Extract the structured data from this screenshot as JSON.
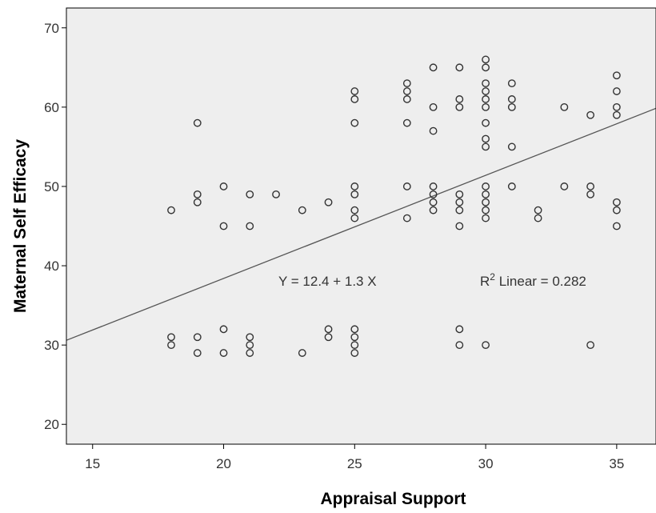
{
  "chart_data": {
    "type": "scatter",
    "xlabel": "Appraisal Support",
    "ylabel": "Maternal Self Efficacy",
    "xlim": [
      14,
      36.5
    ],
    "ylim": [
      17.5,
      72.5
    ],
    "xticks": [
      15,
      20,
      25,
      30,
      35
    ],
    "yticks": [
      20,
      30,
      40,
      50,
      60,
      70
    ],
    "grid": false,
    "colors": {
      "plot_bg": "#eeeeee",
      "marker": "#333333",
      "line": "#555555"
    },
    "fit_line": {
      "intercept": 12.4,
      "slope": 1.3,
      "color": "#555555"
    },
    "annotations": {
      "equation": "Y = 12.4 + 1.3 X",
      "r2_prefix": "R",
      "r2_sup": "2",
      "r2_suffix": " Linear = 0.282"
    },
    "points": [
      [
        18,
        47
      ],
      [
        18,
        31
      ],
      [
        18,
        30
      ],
      [
        19,
        58
      ],
      [
        19,
        49
      ],
      [
        19,
        48
      ],
      [
        19,
        31
      ],
      [
        19,
        29
      ],
      [
        20,
        50
      ],
      [
        20,
        45
      ],
      [
        20,
        32
      ],
      [
        20,
        29
      ],
      [
        21,
        49
      ],
      [
        21,
        45
      ],
      [
        21,
        31
      ],
      [
        21,
        30
      ],
      [
        21,
        29
      ],
      [
        22,
        49
      ],
      [
        23,
        47
      ],
      [
        23,
        29
      ],
      [
        24,
        48
      ],
      [
        24,
        32
      ],
      [
        24,
        31
      ],
      [
        25,
        62
      ],
      [
        25,
        61
      ],
      [
        25,
        58
      ],
      [
        25,
        50
      ],
      [
        25,
        49
      ],
      [
        25,
        47
      ],
      [
        25,
        46
      ],
      [
        25,
        32
      ],
      [
        25,
        31
      ],
      [
        25,
        30
      ],
      [
        25,
        29
      ],
      [
        27,
        63
      ],
      [
        27,
        62
      ],
      [
        27,
        61
      ],
      [
        27,
        58
      ],
      [
        27,
        50
      ],
      [
        27,
        46
      ],
      [
        28,
        65
      ],
      [
        28,
        60
      ],
      [
        28,
        57
      ],
      [
        28,
        50
      ],
      [
        28,
        49
      ],
      [
        28,
        48
      ],
      [
        28,
        47
      ],
      [
        29,
        65
      ],
      [
        29,
        61
      ],
      [
        29,
        60
      ],
      [
        29,
        49
      ],
      [
        29,
        48
      ],
      [
        29,
        47
      ],
      [
        29,
        45
      ],
      [
        29,
        32
      ],
      [
        29,
        30
      ],
      [
        30,
        66
      ],
      [
        30,
        65
      ],
      [
        30,
        63
      ],
      [
        30,
        62
      ],
      [
        30,
        61
      ],
      [
        30,
        60
      ],
      [
        30,
        58
      ],
      [
        30,
        56
      ],
      [
        30,
        55
      ],
      [
        30,
        50
      ],
      [
        30,
        49
      ],
      [
        30,
        48
      ],
      [
        30,
        47
      ],
      [
        30,
        46
      ],
      [
        30,
        30
      ],
      [
        31,
        63
      ],
      [
        31,
        61
      ],
      [
        31,
        60
      ],
      [
        31,
        55
      ],
      [
        31,
        50
      ],
      [
        32,
        47
      ],
      [
        32,
        46
      ],
      [
        33,
        60
      ],
      [
        33,
        50
      ],
      [
        34,
        59
      ],
      [
        34,
        50
      ],
      [
        34,
        49
      ],
      [
        34,
        30
      ],
      [
        35,
        64
      ],
      [
        35,
        62
      ],
      [
        35,
        60
      ],
      [
        35,
        59
      ],
      [
        35,
        48
      ],
      [
        35,
        47
      ],
      [
        35,
        45
      ]
    ]
  }
}
